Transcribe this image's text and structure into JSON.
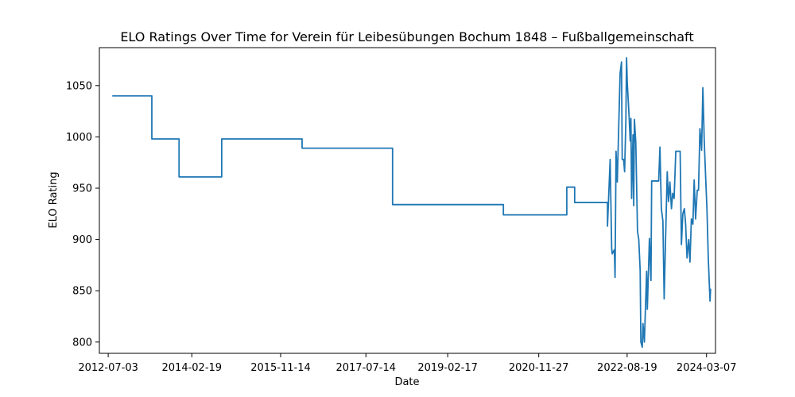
{
  "chart_data": {
    "type": "line",
    "title": "ELO Ratings Over Time for Verein für Leibesübungen Bochum 1848 – Fußballgemeinschaft",
    "xlabel": "Date",
    "ylabel": "ELO Rating",
    "x_ticks": [
      "2012-07-03",
      "2014-02-19",
      "2015-11-14",
      "2017-07-14",
      "2019-02-17",
      "2020-11-27",
      "2022-08-19",
      "2024-03-07"
    ],
    "y_ticks": [
      800,
      850,
      900,
      950,
      1000,
      1050
    ],
    "xlim": [
      "2012-05-01",
      "2024-05-10"
    ],
    "ylim": [
      789,
      1087
    ],
    "grid": false,
    "line_color": "#1f77b4",
    "series": [
      {
        "x": [
          "2012-08-01",
          "2013-05-10",
          "2013-05-10",
          "2013-11-20",
          "2013-11-20",
          "2014-09-20",
          "2014-09-20",
          "2016-04-15",
          "2016-04-15",
          "2018-01-20",
          "2018-01-20",
          "2020-03-20",
          "2020-03-20",
          "2021-06-15",
          "2021-06-15",
          "2021-08-10",
          "2021-08-10",
          "2022-04-01",
          "2022-04-01",
          "2022-04-20",
          "2022-05-01",
          "2022-05-05",
          "2022-05-20",
          "2022-05-25",
          "2022-06-01",
          "2022-06-10",
          "2022-06-20",
          "2022-06-30",
          "2022-07-10",
          "2022-07-15",
          "2022-07-25",
          "2022-08-01",
          "2022-08-10",
          "2022-08-15",
          "2022-08-20",
          "2022-09-01",
          "2022-09-10",
          "2022-09-15",
          "2022-09-20",
          "2022-09-30",
          "2022-10-05",
          "2022-10-10",
          "2022-10-20",
          "2022-11-01",
          "2022-11-10",
          "2022-11-20",
          "2022-11-25",
          "2022-12-05",
          "2022-12-10",
          "2022-12-20",
          "2023-01-05",
          "2023-01-10",
          "2023-01-25",
          "2023-02-05",
          "2023-02-10",
          "2023-02-20",
          "2023-03-01",
          "2023-03-10",
          "2023-03-20",
          "2023-04-01",
          "2023-04-10",
          "2023-04-20",
          "2023-05-01",
          "2023-05-10",
          "2023-05-20",
          "2023-06-01",
          "2023-06-10",
          "2023-06-20",
          "2023-07-01",
          "2023-07-10",
          "2023-07-20",
          "2023-08-01",
          "2023-08-10",
          "2023-08-20",
          "2023-09-01",
          "2023-09-10",
          "2023-09-20",
          "2023-10-01",
          "2023-10-10",
          "2023-10-20",
          "2023-11-01",
          "2023-11-10",
          "2023-11-20",
          "2023-12-01",
          "2023-12-10",
          "2023-12-20",
          "2024-01-01",
          "2024-01-10",
          "2024-01-20",
          "2024-02-01",
          "2024-02-10",
          "2024-02-20",
          "2024-03-01",
          "2024-03-10",
          "2024-03-20",
          "2024-04-01",
          "2024-04-05"
        ],
        "y": [
          1040,
          1040,
          998,
          998,
          961,
          961,
          998,
          998,
          989,
          989,
          934,
          934,
          924,
          924,
          951,
          951,
          936,
          936,
          913,
          978,
          891,
          886,
          890,
          863,
          986,
          956,
          1009,
          1062,
          1073,
          978,
          978,
          966,
          1015,
          1077,
          1053,
          1023,
          996,
          1018,
          940,
          1002,
          933,
          1017,
          994,
          908,
          900,
          870,
          800,
          795,
          818,
          800,
          869,
          832,
          901,
          860,
          957,
          957,
          957,
          957,
          957,
          957,
          990,
          930,
          918,
          842,
          900,
          966,
          937,
          956,
          930,
          945,
          940,
          986,
          986,
          986,
          986,
          895,
          925,
          930,
          915,
          882,
          900,
          878,
          920,
          915,
          958,
          920,
          948,
          948,
          1008,
          987,
          1048,
          995,
          960,
          930,
          880,
          840,
          852
        ]
      }
    ]
  }
}
